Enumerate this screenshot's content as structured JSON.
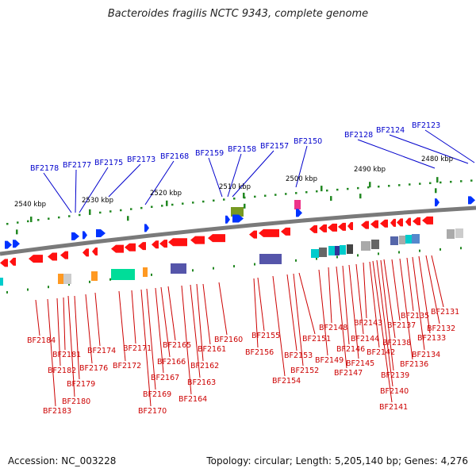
{
  "title": "Bacteroides fragilis NCTC 9343, complete genome",
  "footer": {
    "accession": "Accession: NC_003228",
    "summary": "Topology: circular; Length: 5,205,140 bp; Genes: 4,276"
  },
  "colors": {
    "backbone": "#808080",
    "forward_label": "#0000cc",
    "reverse_label": "#cc0000",
    "forward_gene": "#0033ff",
    "reverse_gene": "#ff1111",
    "tick": "#228822"
  },
  "kbp_ticks": [
    "2480 kbp",
    "2490 kbp",
    "2500 kbp",
    "2510 kbp",
    "2520 kbp",
    "2530 kbp",
    "2540 kbp"
  ],
  "forward_labels": [
    "BF2123",
    "BF2124",
    "BF2128",
    "BF2150",
    "BF2157",
    "BF2158",
    "BF2159",
    "BF2168",
    "BF2173",
    "BF2175",
    "BF2177",
    "BF2178"
  ],
  "reverse_labels": [
    "BF2131",
    "BF2132",
    "BF2133",
    "BF2134",
    "BF2135",
    "BF2136",
    "BF2137",
    "BF2138",
    "BF2139",
    "BF2140",
    "BF2141",
    "BF2142",
    "BF2143",
    "BF2144",
    "BF2145",
    "BF2146",
    "BF2147",
    "BF2148",
    "BF2149",
    "BF2151",
    "BF2152",
    "BF2153",
    "BF2154",
    "BF2155",
    "BF2156",
    "BF2160",
    "BF2161",
    "BF2162",
    "BF2163",
    "BF2164",
    "BF2165",
    "BF2166",
    "BF2167",
    "BF2169",
    "BF2170",
    "BF2171",
    "BF2172",
    "BF2174",
    "BF2176",
    "BF2179",
    "BF2180",
    "BF2181",
    "BF2182",
    "BF2183",
    "BF2184"
  ]
}
